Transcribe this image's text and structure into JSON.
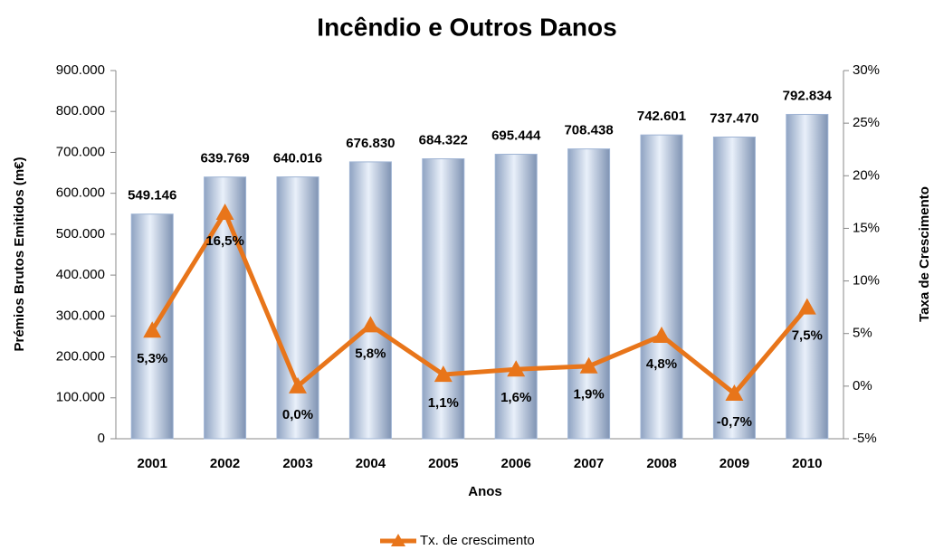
{
  "chart_data": {
    "type": "bar",
    "title": "Incêndio e Outros Danos",
    "xlabel": "Anos",
    "ylabel": "Prémios Brutos Emitidos (m€)",
    "y2label": "Taxa de Crescimento",
    "categories": [
      "2001",
      "2002",
      "2003",
      "2004",
      "2005",
      "2006",
      "2007",
      "2008",
      "2009",
      "2010"
    ],
    "series": [
      {
        "type": "bar",
        "color": "#9fb4d4",
        "values": [
          549146,
          639769,
          640016,
          676830,
          684322,
          695444,
          708438,
          742601,
          737470,
          792834
        ],
        "value_labels": [
          "549.146",
          "639.769",
          "640.016",
          "676.830",
          "684.322",
          "695.444",
          "708.438",
          "742.601",
          "737.470",
          "792.834"
        ]
      },
      {
        "type": "line",
        "name": "Tx. de crescimento",
        "color": "#e8751a",
        "axis": "y2",
        "values": [
          5.3,
          16.5,
          0.0,
          5.8,
          1.1,
          1.6,
          1.9,
          4.8,
          -0.7,
          7.5
        ],
        "value_labels": [
          "5,3%",
          "16,5%",
          "0,0%",
          "5,8%",
          "1,1%",
          "1,6%",
          "1,9%",
          "4,8%",
          "-0,7%",
          "7,5%"
        ]
      }
    ],
    "ylim": [
      0,
      900000
    ],
    "yticks": [
      0,
      {
        "value": 100000,
        "label": "100.000"
      },
      {
        "value": 200000,
        "label": "200.000"
      },
      {
        "value": 300000,
        "label": "300.000"
      },
      {
        "value": 400000,
        "label": "400.000"
      },
      {
        "value": 500000,
        "label": "500.000"
      },
      {
        "value": 600000,
        "label": "600.000"
      },
      {
        "value": 700000,
        "label": "700.000"
      },
      {
        "value": 800000,
        "label": "800.000"
      },
      {
        "value": 900000,
        "label": "900.000"
      }
    ],
    "y2lim": [
      -5,
      30
    ],
    "y2ticks": [
      {
        "value": -5,
        "label": "-5%"
      },
      {
        "value": 0,
        "label": "0%"
      },
      {
        "value": 5,
        "label": "5%"
      },
      {
        "value": 10,
        "label": "10%"
      },
      {
        "value": 15,
        "label": "15%"
      },
      {
        "value": 20,
        "label": "20%"
      },
      {
        "value": 25,
        "label": "25%"
      },
      {
        "value": 30,
        "label": "30%"
      }
    ],
    "legend": "bottom"
  }
}
